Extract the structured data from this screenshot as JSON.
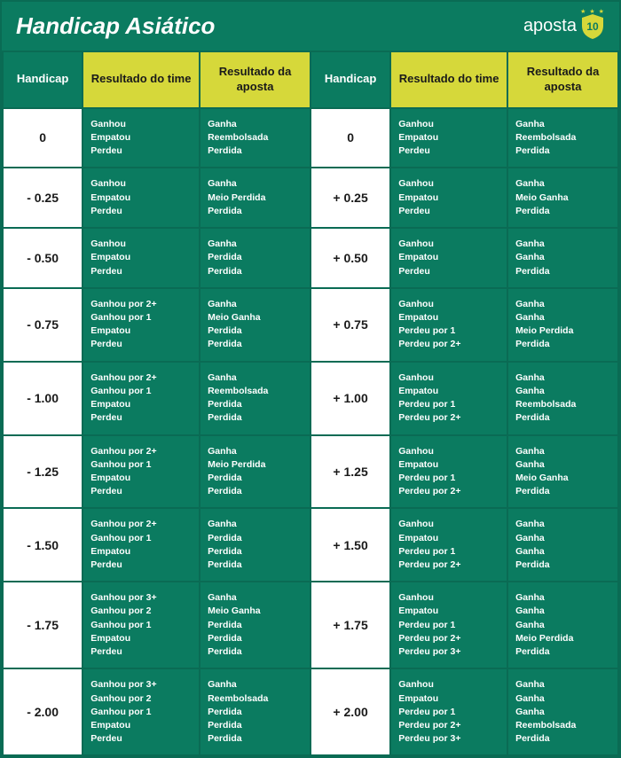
{
  "colors": {
    "bg_main": "#0b7b60",
    "border_main": "#0a6b54",
    "th_bg": "#d6d83a",
    "th_text": "#1a1a1a",
    "accent": "#d6d83a",
    "white": "#ffffff"
  },
  "title": "Handicap Asiático",
  "logo": {
    "text": "aposta",
    "number": "10"
  },
  "columns": {
    "handicap": "Handicap",
    "team": "Resultado do time",
    "bet": "Resultado da aposta"
  },
  "rows": [
    {
      "left_h": "0",
      "left_team": [
        "Ganhou",
        "Empatou",
        "Perdeu"
      ],
      "left_bet": [
        "Ganha",
        "Reembolsada",
        "Perdida"
      ],
      "right_h": "0",
      "right_team": [
        "Ganhou",
        "Empatou",
        "Perdeu"
      ],
      "right_bet": [
        "Ganha",
        "Reembolsada",
        "Perdida"
      ]
    },
    {
      "left_h": "- 0.25",
      "left_team": [
        "Ganhou",
        "Empatou",
        "Perdeu"
      ],
      "left_bet": [
        "Ganha",
        "Meio Perdida",
        "Perdida"
      ],
      "right_h": "+ 0.25",
      "right_team": [
        "Ganhou",
        "Empatou",
        "Perdeu"
      ],
      "right_bet": [
        "Ganha",
        "Meio Ganha",
        "Perdida"
      ]
    },
    {
      "left_h": "- 0.50",
      "left_team": [
        "Ganhou",
        "Empatou",
        "Perdeu"
      ],
      "left_bet": [
        "Ganha",
        "Perdida",
        "Perdida"
      ],
      "right_h": "+ 0.50",
      "right_team": [
        "Ganhou",
        "Empatou",
        "Perdeu"
      ],
      "right_bet": [
        "Ganha",
        "Ganha",
        "Perdida"
      ]
    },
    {
      "left_h": "- 0.75",
      "left_team": [
        "Ganhou por 2+",
        "Ganhou por 1",
        "Empatou",
        "Perdeu"
      ],
      "left_bet": [
        "Ganha",
        "Meio Ganha",
        "Perdida",
        "Perdida"
      ],
      "right_h": "+ 0.75",
      "right_team": [
        "Ganhou",
        "Empatou",
        "Perdeu por 1",
        "Perdeu por 2+"
      ],
      "right_bet": [
        "Ganha",
        "Ganha",
        "Meio Perdida",
        "Perdida"
      ]
    },
    {
      "left_h": "- 1.00",
      "left_team": [
        "Ganhou por 2+",
        "Ganhou por 1",
        "Empatou",
        "Perdeu"
      ],
      "left_bet": [
        "Ganha",
        "Reembolsada",
        "Perdida",
        "Perdida"
      ],
      "right_h": "+ 1.00",
      "right_team": [
        "Ganhou",
        "Empatou",
        "Perdeu por 1",
        "Perdeu por 2+"
      ],
      "right_bet": [
        "Ganha",
        "Ganha",
        "Reembolsada",
        "Perdida"
      ]
    },
    {
      "left_h": "- 1.25",
      "left_team": [
        "Ganhou por 2+",
        "Ganhou por 1",
        "Empatou",
        "Perdeu"
      ],
      "left_bet": [
        "Ganha",
        "Meio Perdida",
        "Perdida",
        "Perdida"
      ],
      "right_h": "+ 1.25",
      "right_team": [
        "Ganhou",
        "Empatou",
        "Perdeu por 1",
        "Perdeu por 2+"
      ],
      "right_bet": [
        "Ganha",
        "Ganha",
        "Meio Ganha",
        "Perdida"
      ]
    },
    {
      "left_h": "- 1.50",
      "left_team": [
        "Ganhou por 2+",
        "Ganhou por 1",
        "Empatou",
        "Perdeu"
      ],
      "left_bet": [
        "Ganha",
        "Perdida",
        "Perdida",
        "Perdida"
      ],
      "right_h": "+ 1.50",
      "right_team": [
        "Ganhou",
        "Empatou",
        "Perdeu por 1",
        "Perdeu por 2+"
      ],
      "right_bet": [
        "Ganha",
        "Ganha",
        "Ganha",
        "Perdida"
      ]
    },
    {
      "left_h": "- 1.75",
      "left_team": [
        "Ganhou por 3+",
        "Ganhou por 2",
        "Ganhou por 1",
        "Empatou",
        "Perdeu"
      ],
      "left_bet": [
        "Ganha",
        "Meio Ganha",
        "Perdida",
        "Perdida",
        "Perdida"
      ],
      "right_h": "+ 1.75",
      "right_team": [
        "Ganhou",
        "Empatou",
        "Perdeu por 1",
        "Perdeu por 2+",
        "Perdeu por 3+"
      ],
      "right_bet": [
        "Ganha",
        "Ganha",
        "Ganha",
        "Meio Perdida",
        "Perdida"
      ]
    },
    {
      "left_h": "- 2.00",
      "left_team": [
        "Ganhou por 3+",
        "Ganhou por 2",
        "Ganhou por 1",
        "Empatou",
        "Perdeu"
      ],
      "left_bet": [
        "Ganha",
        "Reembolsada",
        "Perdida",
        "Perdida",
        "Perdida"
      ],
      "right_h": "+ 2.00",
      "right_team": [
        "Ganhou",
        "Empatou",
        "Perdeu por 1",
        "Perdeu por 2+",
        "Perdeu por 3+"
      ],
      "right_bet": [
        "Ganha",
        "Ganha",
        "Ganha",
        "Reembolsada",
        "Perdida"
      ]
    }
  ]
}
